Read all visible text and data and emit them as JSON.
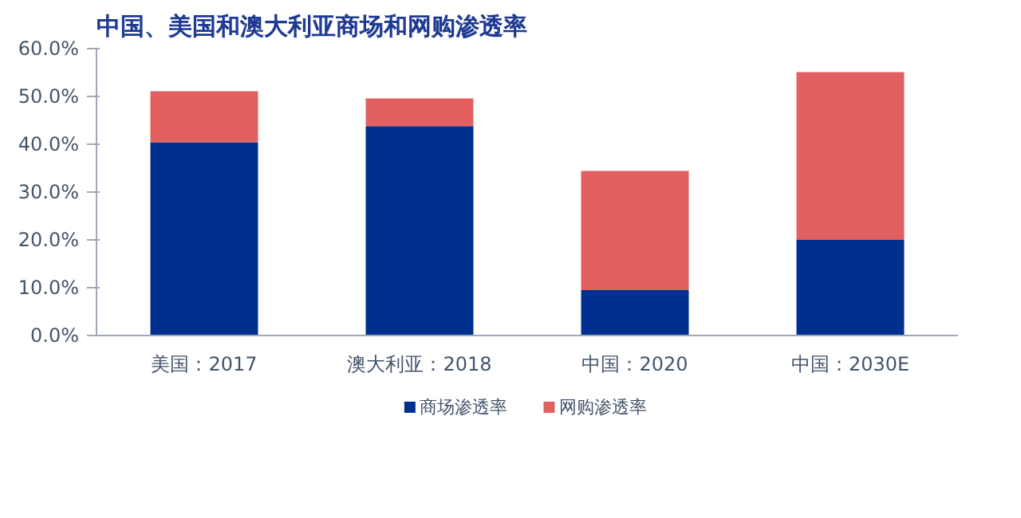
{
  "chart_data": {
    "type": "bar",
    "title": "中国、美国和澳大利亚商场和网购渗透率",
    "stacked": true,
    "categories": [
      "美国：2017",
      "澳大利亚：2018",
      "中国：2020",
      "中国：2030E"
    ],
    "series": [
      {
        "name": "商场渗透率",
        "color": "#00308f",
        "values": [
          40.4,
          43.8,
          9.5,
          20.0
        ]
      },
      {
        "name": "网购渗透率",
        "color": "#e36060",
        "values": [
          10.7,
          5.8,
          24.9,
          35.1
        ]
      }
    ],
    "ylim": [
      0,
      60
    ],
    "yticks": [
      {
        "value": 0,
        "label": "0.0%"
      },
      {
        "value": 10,
        "label": "10.0%"
      },
      {
        "value": 20,
        "label": "20.0%"
      },
      {
        "value": 30,
        "label": "30.0%"
      },
      {
        "value": 40,
        "label": "40.0%"
      },
      {
        "value": 50,
        "label": "50.0%"
      },
      {
        "value": 60,
        "label": "60.0%"
      }
    ],
    "grid": false,
    "legend": "bottom"
  }
}
